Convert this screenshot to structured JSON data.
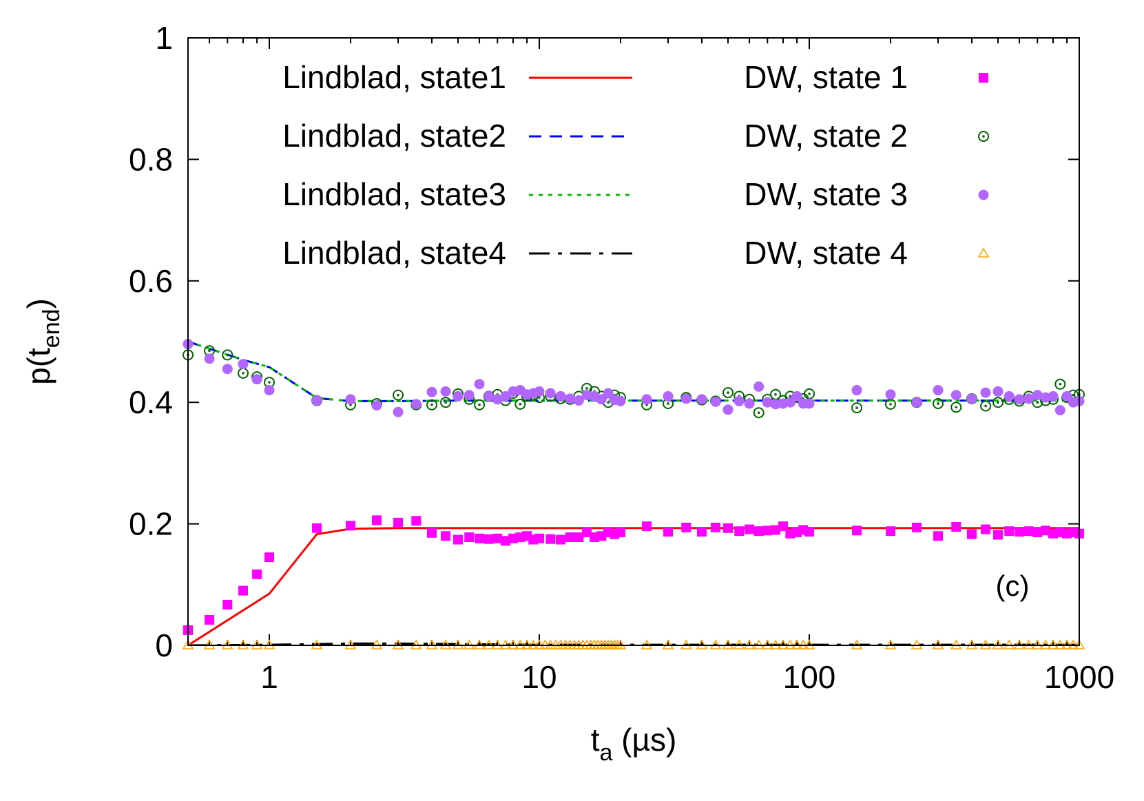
{
  "chart_data": {
    "type": "line",
    "title": "",
    "xlabel": {
      "main": "t",
      "sub": "a",
      "rest": " (µs)"
    },
    "ylabel": {
      "main": "p(t",
      "sub": "end",
      "rest": ")"
    },
    "xscale": "log",
    "xlim": [
      0.5,
      1000
    ],
    "ylim": [
      0,
      1
    ],
    "xticks": [
      1,
      10,
      100,
      1000
    ],
    "xtick_labels": [
      "1",
      "10",
      "100",
      "1000"
    ],
    "yticks": [
      0,
      0.2,
      0.4,
      0.6,
      0.8,
      1
    ],
    "ytick_labels": [
      "0",
      "0.2",
      "0.4",
      "0.6",
      "0.8",
      "1"
    ],
    "grid": false,
    "legend_placement": "top",
    "annotation": "(c)",
    "lines": [
      {
        "name": "Lindblad, state1",
        "color": "#ff0000",
        "dash": "solid",
        "x": [
          0.5,
          1,
          1.5,
          2,
          3,
          5,
          10,
          20,
          50,
          100,
          200,
          500,
          1000
        ],
        "y": [
          0,
          0.085,
          0.183,
          0.192,
          0.193,
          0.193,
          0.193,
          0.193,
          0.193,
          0.193,
          0.193,
          0.193,
          0.193
        ]
      },
      {
        "name": "Lindblad, state2",
        "color": "#0000ff",
        "dash": "dashed",
        "x": [
          0.5,
          0.8,
          1,
          1.5,
          2,
          3,
          5,
          10,
          20,
          50,
          100,
          200,
          500,
          1000
        ],
        "y": [
          0.5,
          0.47,
          0.458,
          0.407,
          0.402,
          0.402,
          0.403,
          0.403,
          0.403,
          0.403,
          0.403,
          0.403,
          0.403,
          0.403
        ]
      },
      {
        "name": "Lindblad, state3",
        "color": "#00bb00",
        "dash": "dotted",
        "x": [
          0.5,
          0.8,
          1,
          1.5,
          2,
          3,
          5,
          10,
          20,
          50,
          100,
          200,
          500,
          1000
        ],
        "y": [
          0.5,
          0.47,
          0.458,
          0.407,
          0.402,
          0.402,
          0.403,
          0.403,
          0.403,
          0.403,
          0.403,
          0.403,
          0.403,
          0.403
        ]
      },
      {
        "name": "Lindblad, state4",
        "color": "#000000",
        "dash": "dashdot",
        "x": [
          0.5,
          1,
          2,
          3,
          5,
          10,
          20,
          100,
          1000
        ],
        "y": [
          0,
          0.001,
          0.003,
          0.003,
          0.002,
          0.001,
          0.001,
          0.001,
          0.001
        ]
      }
    ],
    "markers": [
      {
        "name": "DW, state 1",
        "color": "#ff00ff",
        "shape": "square",
        "x": [
          0.5,
          0.6,
          0.7,
          0.8,
          0.9,
          1.0,
          1.5,
          2,
          2.5,
          3,
          3.5,
          4,
          4.5,
          5,
          5.5,
          6,
          6.5,
          7,
          7.5,
          8,
          8.5,
          9,
          9.5,
          10,
          11,
          12,
          13,
          14,
          15,
          16,
          17,
          18,
          19,
          20,
          25,
          30,
          35,
          40,
          45,
          50,
          55,
          60,
          65,
          70,
          75,
          80,
          85,
          90,
          95,
          100,
          150,
          200,
          250,
          300,
          350,
          400,
          450,
          500,
          550,
          600,
          650,
          700,
          750,
          800,
          850,
          900,
          950,
          1000
        ],
        "y": [
          0.025,
          0.042,
          0.067,
          0.09,
          0.117,
          0.145,
          0.193,
          0.197,
          0.206,
          0.202,
          0.205,
          0.185,
          0.18,
          0.174,
          0.178,
          0.176,
          0.175,
          0.176,
          0.172,
          0.176,
          0.178,
          0.18,
          0.174,
          0.176,
          0.175,
          0.174,
          0.178,
          0.178,
          0.186,
          0.178,
          0.18,
          0.186,
          0.183,
          0.186,
          0.196,
          0.187,
          0.194,
          0.187,
          0.194,
          0.193,
          0.188,
          0.191,
          0.188,
          0.189,
          0.19,
          0.196,
          0.184,
          0.186,
          0.19,
          0.187,
          0.189,
          0.188,
          0.194,
          0.18,
          0.195,
          0.183,
          0.191,
          0.182,
          0.188,
          0.187,
          0.188,
          0.186,
          0.189,
          0.184,
          0.186,
          0.184,
          0.186,
          0.184
        ]
      },
      {
        "name": "DW, state 2",
        "color": "#006400",
        "shape": "circle-dot",
        "x": [
          0.5,
          0.6,
          0.7,
          0.8,
          0.9,
          1.0,
          1.5,
          2,
          2.5,
          3,
          3.5,
          4,
          4.5,
          5,
          5.5,
          6,
          6.5,
          7,
          7.5,
          8,
          8.5,
          9,
          9.5,
          10,
          11,
          12,
          13,
          14,
          15,
          16,
          17,
          18,
          19,
          20,
          25,
          30,
          35,
          40,
          45,
          50,
          55,
          60,
          65,
          70,
          75,
          80,
          85,
          90,
          95,
          100,
          150,
          200,
          250,
          300,
          350,
          400,
          450,
          500,
          550,
          600,
          650,
          700,
          750,
          800,
          850,
          900,
          950,
          1000
        ],
        "y": [
          0.478,
          0.485,
          0.478,
          0.448,
          0.442,
          0.433,
          0.403,
          0.396,
          0.398,
          0.412,
          0.396,
          0.396,
          0.4,
          0.414,
          0.405,
          0.396,
          0.41,
          0.413,
          0.403,
          0.415,
          0.397,
          0.41,
          0.412,
          0.408,
          0.41,
          0.406,
          0.405,
          0.41,
          0.423,
          0.418,
          0.41,
          0.4,
          0.412,
          0.408,
          0.396,
          0.398,
          0.408,
          0.404,
          0.402,
          0.416,
          0.41,
          0.405,
          0.383,
          0.405,
          0.413,
          0.403,
          0.41,
          0.408,
          0.406,
          0.414,
          0.391,
          0.397,
          0.4,
          0.398,
          0.392,
          0.406,
          0.394,
          0.4,
          0.405,
          0.402,
          0.41,
          0.4,
          0.403,
          0.405,
          0.43,
          0.408,
          0.412,
          0.413
        ]
      },
      {
        "name": "DW, state 3",
        "color": "#b266ff",
        "shape": "circle",
        "x": [
          0.5,
          0.6,
          0.7,
          0.8,
          0.9,
          1.0,
          1.5,
          2,
          2.5,
          3,
          3.5,
          4,
          4.5,
          5,
          5.5,
          6,
          6.5,
          7,
          7.5,
          8,
          8.5,
          9,
          9.5,
          10,
          11,
          12,
          13,
          14,
          15,
          16,
          17,
          18,
          19,
          20,
          25,
          30,
          35,
          40,
          45,
          50,
          55,
          60,
          65,
          70,
          75,
          80,
          85,
          90,
          95,
          100,
          150,
          200,
          250,
          300,
          350,
          400,
          450,
          500,
          550,
          600,
          650,
          700,
          750,
          800,
          850,
          900,
          950,
          1000
        ],
        "y": [
          0.496,
          0.472,
          0.455,
          0.463,
          0.438,
          0.42,
          0.403,
          0.405,
          0.395,
          0.384,
          0.397,
          0.417,
          0.418,
          0.41,
          0.412,
          0.43,
          0.41,
          0.405,
          0.41,
          0.418,
          0.42,
          0.413,
          0.415,
          0.418,
          0.415,
          0.41,
          0.406,
          0.403,
          0.412,
          0.41,
          0.405,
          0.415,
          0.404,
          0.402,
          0.405,
          0.41,
          0.406,
          0.405,
          0.401,
          0.388,
          0.402,
          0.398,
          0.426,
          0.4,
          0.397,
          0.398,
          0.4,
          0.41,
          0.398,
          0.398,
          0.42,
          0.413,
          0.4,
          0.42,
          0.412,
          0.406,
          0.416,
          0.418,
          0.41,
          0.405,
          0.406,
          0.412,
          0.408,
          0.41,
          0.387,
          0.41,
          0.4,
          0.402
        ]
      },
      {
        "name": "DW, state 4",
        "color": "#ffa500",
        "shape": "triangle",
        "x": [
          0.5,
          0.6,
          0.7,
          0.8,
          0.9,
          1.0,
          1.5,
          2,
          2.5,
          3,
          3.5,
          4,
          4.5,
          5,
          5.5,
          6,
          6.5,
          7,
          7.5,
          8,
          8.5,
          9,
          9.5,
          10,
          10.5,
          11,
          11.5,
          12,
          12.5,
          13,
          13.5,
          14,
          14.5,
          15,
          15.5,
          16,
          16.5,
          17,
          17.5,
          18,
          18.5,
          19,
          19.5,
          20,
          25,
          30,
          35,
          40,
          45,
          50,
          55,
          60,
          65,
          70,
          75,
          80,
          85,
          90,
          95,
          100,
          150,
          200,
          250,
          300,
          350,
          400,
          450,
          500,
          550,
          600,
          650,
          700,
          750,
          800,
          850,
          900,
          950,
          1000
        ],
        "y": [
          0,
          0,
          0,
          0,
          0,
          0,
          0,
          0,
          0,
          0,
          0,
          0,
          0,
          0,
          0,
          0,
          0,
          0,
          0,
          0,
          0,
          0,
          0,
          0,
          0,
          0,
          0,
          0,
          0,
          0,
          0,
          0,
          0,
          0,
          0,
          0,
          0,
          0,
          0,
          0,
          0,
          0,
          0,
          0,
          0,
          0,
          0,
          0,
          0,
          0,
          0,
          0,
          0,
          0,
          0,
          0,
          0,
          0,
          0,
          0,
          0,
          0,
          0,
          0,
          0,
          0,
          0,
          0,
          0,
          0,
          0,
          0,
          0,
          0,
          0,
          0,
          0,
          0
        ]
      }
    ]
  }
}
